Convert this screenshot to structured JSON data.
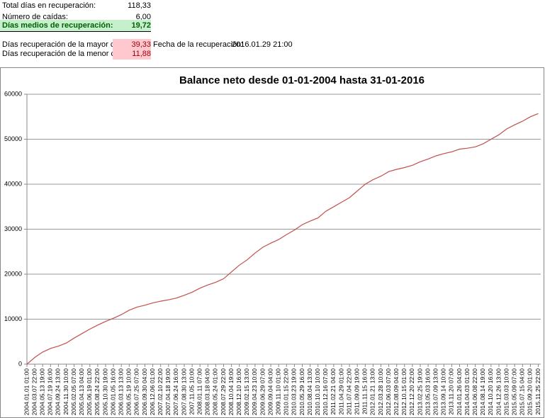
{
  "sheet": {
    "rows": [
      [
        "Total días en recuperación:",
        "118,33"
      ],
      [
        "Número de caídas:",
        "6,00"
      ],
      [
        "Días medios de recuperación:",
        "19,72"
      ],
      [
        "Días recuperación de la mayor caída:",
        "39,33",
        "Fecha de la recuperación:",
        "2016.01.29 21:00"
      ],
      [
        "Días recuperación de la menor caída:",
        "11,88"
      ]
    ]
  },
  "chart_data": {
    "type": "line",
    "title": "Balance neto desde 01-01-2004 hasta 31-01-2016",
    "color": "#c0504d",
    "grid": true,
    "ylim": [
      0,
      60000
    ],
    "yticks": [
      0,
      10000,
      20000,
      30000,
      40000,
      50000,
      60000
    ],
    "categories": [
      "2004.01.01 01:00",
      "2004.03.07 22:00",
      "2004.05.13 19:00",
      "2004.07.19 16:00",
      "2004.09.24 13:00",
      "2004.11.30 10:00",
      "2005.02.05 07:00",
      "2005.04.13 04:00",
      "2005.06.19 01:00",
      "2005.08.24 22:00",
      "2005.10.30 19:00",
      "2006.01.05 16:00",
      "2006.03.13 13:00",
      "2006.05.19 10:00",
      "2006.07.25 07:00",
      "2006.09.30 04:00",
      "2006.12.06 01:00",
      "2007.02.10 22:00",
      "2007.04.18 19:00",
      "2007.06.24 16:00",
      "2007.08.30 13:00",
      "2007.11.05 10:00",
      "2008.01.11 07:00",
      "2008.03.18 04:00",
      "2008.05.24 01:00",
      "2008.07.29 22:00",
      "2008.10.04 19:00",
      "2008.12.10 16:00",
      "2009.02.15 13:00",
      "2009.04.23 10:00",
      "2009.06.29 07:00",
      "2009.09.04 04:00",
      "2009.11.10 01:00",
      "2010.01.15 22:00",
      "2010.03.23 19:00",
      "2010.05.29 16:00",
      "2010.08.04 13:00",
      "2010.10.10 10:00",
      "2010.12.16 07:00",
      "2011.02.21 04:00",
      "2011.04.29 01:00",
      "2011.07.04 22:00",
      "2011.09.09 19:00",
      "2011.11.15 16:00",
      "2012.01.21 13:00",
      "2012.03.28 10:00",
      "2012.06.03 07:00",
      "2012.08.09 04:00",
      "2012.10.15 01:00",
      "2012.12.20 22:00",
      "2013.02.25 19:00",
      "2013.05.03 16:00",
      "2013.07.09 13:00",
      "2013.09.14 10:00",
      "2013.11.20 07:00",
      "2014.01.26 04:00",
      "2014.04.03 01:00",
      "2014.06.08 22:00",
      "2014.08.14 19:00",
      "2014.10.20 16:00",
      "2014.12.26 13:00",
      "2015.03.03 10:00",
      "2015.05.09 07:00",
      "2015.07.15 04:00",
      "2015.09.20 01:00",
      "2015.11.25 22:00"
    ],
    "values": [
      0,
      1500,
      2700,
      3500,
      4000,
      4700,
      5800,
      6800,
      7800,
      8700,
      9500,
      10200,
      11000,
      12000,
      12700,
      13100,
      13600,
      14000,
      14300,
      14700,
      15300,
      16000,
      16900,
      17600,
      18200,
      19000,
      20500,
      22000,
      23200,
      24700,
      26000,
      26900,
      27700,
      28800,
      29800,
      31000,
      31800,
      32500,
      34000,
      35000,
      36000,
      37000,
      38500,
      40000,
      41000,
      41800,
      42800,
      43300,
      43700,
      44200,
      45000,
      45600,
      46300,
      46800,
      47200,
      47800,
      48000,
      48300,
      49000,
      50000,
      51000,
      52300,
      53200,
      54000,
      55000,
      55700
    ]
  }
}
